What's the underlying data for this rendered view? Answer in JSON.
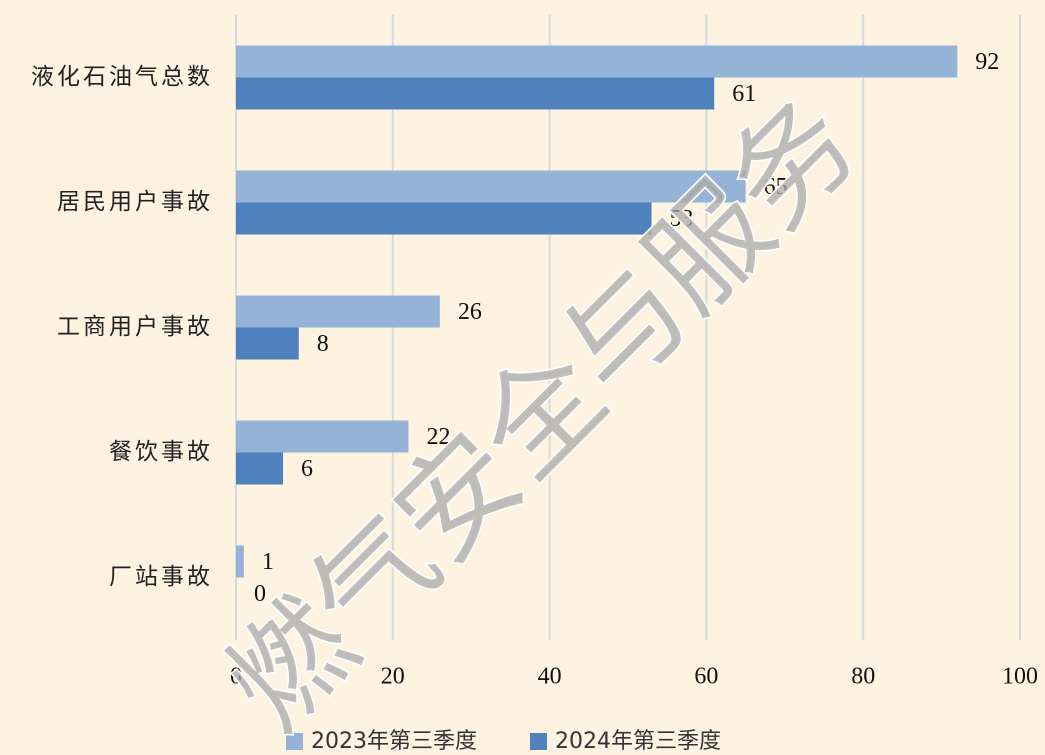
{
  "chart_data": {
    "type": "bar",
    "orientation": "horizontal",
    "categories": [
      "液化石油气总数",
      "居民用户事故",
      "工商用户事故",
      "餐饮事故",
      "厂站事故"
    ],
    "series": [
      {
        "name": "2023年第三季度",
        "color": "#95b3d7",
        "values": [
          92,
          65,
          26,
          22,
          1
        ]
      },
      {
        "name": "2024年第三季度",
        "color": "#4f81bd",
        "values": [
          61,
          53,
          8,
          6,
          0
        ]
      }
    ],
    "xlim": [
      0,
      100
    ],
    "xticks": [
      0,
      20,
      40,
      60,
      80,
      100
    ],
    "grid": true,
    "legend": "bottom",
    "watermark": "燃气安全与服务"
  }
}
